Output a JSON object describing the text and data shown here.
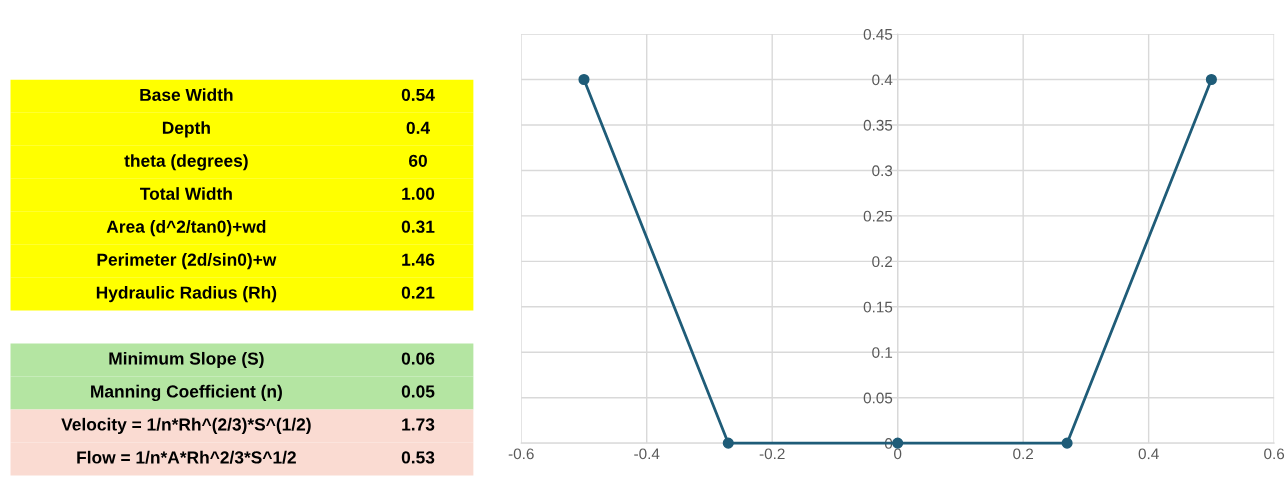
{
  "chart_data": [
    {
      "type": "other",
      "annotations": [
        "Base Width",
        "0.54",
        "Depth",
        "0.4",
        "theta (degrees)",
        "60",
        "Total Width",
        "1.00",
        "Area (d^2/tan0)+wd",
        "0.31",
        "Perimeter (2d/sin0)+w",
        "1.46",
        "Hydraulic Radius (Rh)",
        "0.21",
        "Minimum Slope (S)",
        "0.06",
        "Manning Coefficient (n)",
        "0.05",
        "Velocity = 1/n*Rh^(2/3)*S^(1/2)",
        "1.73",
        "Flow = 1/n*A*Rh^2/3*S^1/2",
        "0.53"
      ]
    },
    {
      "type": "line",
      "x": [
        -0.5,
        -0.27,
        0,
        0.27,
        0.5
      ],
      "series": [
        {
          "color": "#1f5c78",
          "values": [
            0.4,
            0,
            0,
            0,
            0.4
          ]
        }
      ],
      "xlim": [
        -0.6,
        0.6
      ],
      "xticks": [
        -0.6,
        -0.4,
        -0.2,
        0,
        0.2,
        0.4,
        0.6
      ],
      "ylim": [
        0,
        0.45
      ],
      "yticks": [
        0,
        0.05,
        0.1,
        0.15,
        0.2,
        0.25,
        0.3,
        0.35,
        0.4,
        0.45
      ],
      "grid": true,
      "marker": "circle",
      "line_style": "solid",
      "legend": false
    }
  ]
}
